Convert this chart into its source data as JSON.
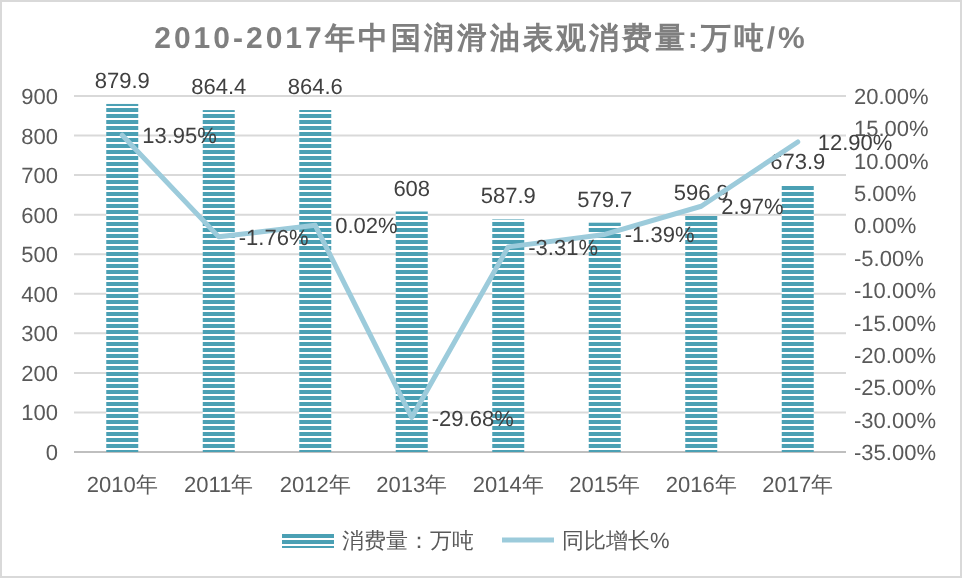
{
  "chart_data": {
    "type": "bar",
    "title": "2010-2017年中国润滑油表观消费量:万吨/%",
    "categories": [
      "2010年",
      "2011年",
      "2012年",
      "2013年",
      "2014年",
      "2015年",
      "2016年",
      "2017年"
    ],
    "series": [
      {
        "name": "消费量：万吨",
        "color": "#4ba0b4",
        "values": [
          879.9,
          864.4,
          864.6,
          608,
          587.9,
          579.7,
          596.9,
          673.9
        ],
        "value_labels": [
          "879.9",
          "864.4",
          "864.6",
          "608",
          "587.9",
          "579.7",
          "596.9",
          "673.9"
        ]
      },
      {
        "name": "同比增长%",
        "type": "line",
        "axis": "y2",
        "color": "#9ccbdb",
        "values": [
          13.95,
          -1.76,
          0.02,
          -29.68,
          -3.31,
          -1.39,
          2.97,
          12.9
        ],
        "value_labels": [
          "13.95%",
          "-1.76%",
          "0.02%",
          "-29.68%",
          "-3.31%",
          "-1.39%",
          "2.97%",
          "12.90%"
        ]
      }
    ],
    "ylim": [
      0,
      900
    ],
    "yticks": [
      0,
      100,
      200,
      300,
      400,
      500,
      600,
      700,
      800,
      900
    ],
    "y2lim": [
      -35,
      20
    ],
    "y2ticks": [
      {
        "value": -35,
        "label": "-35.00%"
      },
      {
        "value": -30,
        "label": "-30.00%"
      },
      {
        "value": -25,
        "label": "-25.00%"
      },
      {
        "value": -20,
        "label": "-20.00%"
      },
      {
        "value": -15,
        "label": "-15.00%"
      },
      {
        "value": -10,
        "label": "-10.00%"
      },
      {
        "value": -5,
        "label": "-5.00%"
      },
      {
        "value": 0,
        "label": "0.00%"
      },
      {
        "value": 5,
        "label": "5.00%"
      },
      {
        "value": 10,
        "label": "10.00%"
      },
      {
        "value": 15,
        "label": "15.00%"
      },
      {
        "value": 20,
        "label": "20.00%"
      }
    ],
    "grid": "y",
    "legend": "bottom"
  }
}
